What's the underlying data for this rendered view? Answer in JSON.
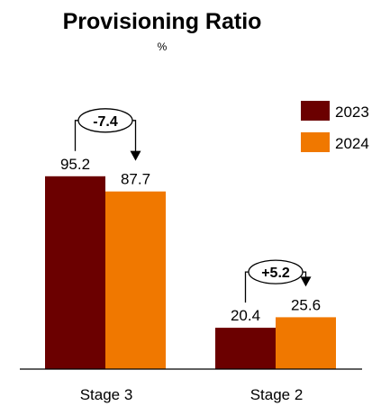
{
  "chart_data": {
    "type": "bar",
    "title": "Provisioning Ratio",
    "subtitle": "%",
    "categories": [
      "Stage 3",
      "Stage 2"
    ],
    "series": [
      {
        "name": "2023",
        "values": [
          95.2,
          20.4
        ]
      },
      {
        "name": "2024",
        "values": [
          87.7,
          25.6
        ]
      }
    ],
    "value_labels": [
      [
        "95.2",
        "20.4"
      ],
      [
        "87.7",
        "25.6"
      ]
    ],
    "annotations": [
      "-7.4",
      "+5.2"
    ],
    "ylim": [
      0,
      100
    ],
    "grid": false,
    "legend_placement": "top-right",
    "colors": {
      "2023": "#6b0000",
      "2024": "#f07800"
    }
  }
}
